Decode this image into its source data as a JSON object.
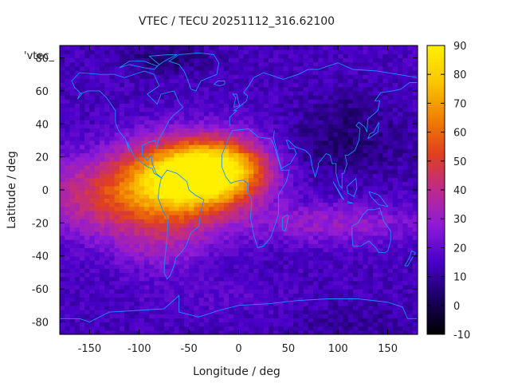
{
  "chart_data": {
    "type": "heatmap",
    "title": "VTEC / TECU 20251112_316.62100",
    "xlabel": "Longitude / deg",
    "ylabel": "Latitude / deg",
    "key_label": "'vtec_",
    "xlim": [
      -180,
      180
    ],
    "ylim": [
      -87.5,
      87.5
    ],
    "x_ticks": [
      -150,
      -100,
      -50,
      0,
      50,
      100,
      150
    ],
    "y_ticks": [
      -80,
      -60,
      -40,
      -20,
      0,
      20,
      40,
      60,
      80
    ],
    "colorbar": {
      "min": -10,
      "max": 90,
      "ticks": [
        -10,
        0,
        10,
        20,
        30,
        40,
        50,
        60,
        70,
        80,
        90
      ]
    },
    "grid_resolution_deg": {
      "lon": 5,
      "lat": 2.5
    },
    "field_features": [
      {
        "name": "equatorial anomaly peak",
        "lon": -55,
        "lat": 12,
        "vtec": 82
      },
      {
        "name": "south american crest",
        "lon": -50,
        "lat": -5,
        "vtec": 72
      },
      {
        "name": "atlantic crest",
        "lon": -15,
        "lat": 15,
        "vtec": 66
      },
      {
        "name": "pacific low-latitude belt",
        "lon": -140,
        "lat": -2,
        "vtec": 48
      },
      {
        "name": "indian ocean belt",
        "lon": 90,
        "lat": -20,
        "vtec": 32
      },
      {
        "name": "background mid-latitude",
        "lon": 100,
        "lat": 45,
        "vtec": 16
      },
      {
        "name": "polar minimum",
        "lon": -75,
        "lat": 78,
        "vtec": -3
      }
    ],
    "overlay": "continental coastlines",
    "colors": {
      "colormap": [
        "#000000",
        "#1a0060",
        "#4800c8",
        "#8c1ad8",
        "#be2a8c",
        "#e0401e",
        "#f08200",
        "#fac800",
        "#fff000"
      ],
      "coastline": "#1f8cff",
      "axes": "#000000"
    }
  }
}
